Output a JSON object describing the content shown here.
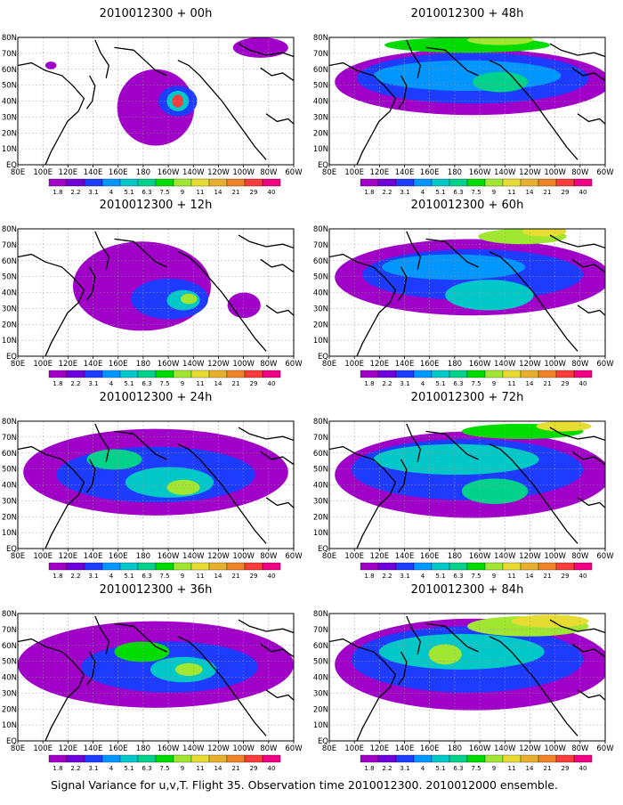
{
  "caption": "Signal Variance for u,v,T. Flight 35. Observation time 2010012300. 2010012000 ensemble.",
  "panels": [
    {
      "title": "2010012300 + 00h"
    },
    {
      "title": "2010012300 + 48h"
    },
    {
      "title": "2010012300 + 12h"
    },
    {
      "title": "2010012300 + 60h"
    },
    {
      "title": "2010012300 + 24h"
    },
    {
      "title": "2010012300 + 72h"
    },
    {
      "title": "2010012300 + 36h"
    },
    {
      "title": "2010012300 + 84h"
    }
  ],
  "axes": {
    "lon_labels": [
      "80E",
      "100E",
      "120E",
      "140E",
      "160E",
      "180",
      "160W",
      "140W",
      "120W",
      "100W",
      "80W",
      "60W"
    ],
    "lat_labels": [
      "EQ",
      "10N",
      "20N",
      "30N",
      "40N",
      "50N",
      "60N",
      "70N",
      "80N"
    ]
  },
  "colorbar": {
    "labels": [
      "1.8",
      "2.2",
      "3.1",
      "4",
      "5.1",
      "6.3",
      "7.5",
      "9",
      "11",
      "14",
      "21",
      "29",
      "40"
    ],
    "colors": [
      "#a000c8",
      "#6e00dc",
      "#1e3cff",
      "#0096ff",
      "#00c8c8",
      "#00d28c",
      "#00dc00",
      "#a0e632",
      "#e6dc32",
      "#e6af2d",
      "#f08228",
      "#fa3c3c",
      "#f00082"
    ]
  }
}
